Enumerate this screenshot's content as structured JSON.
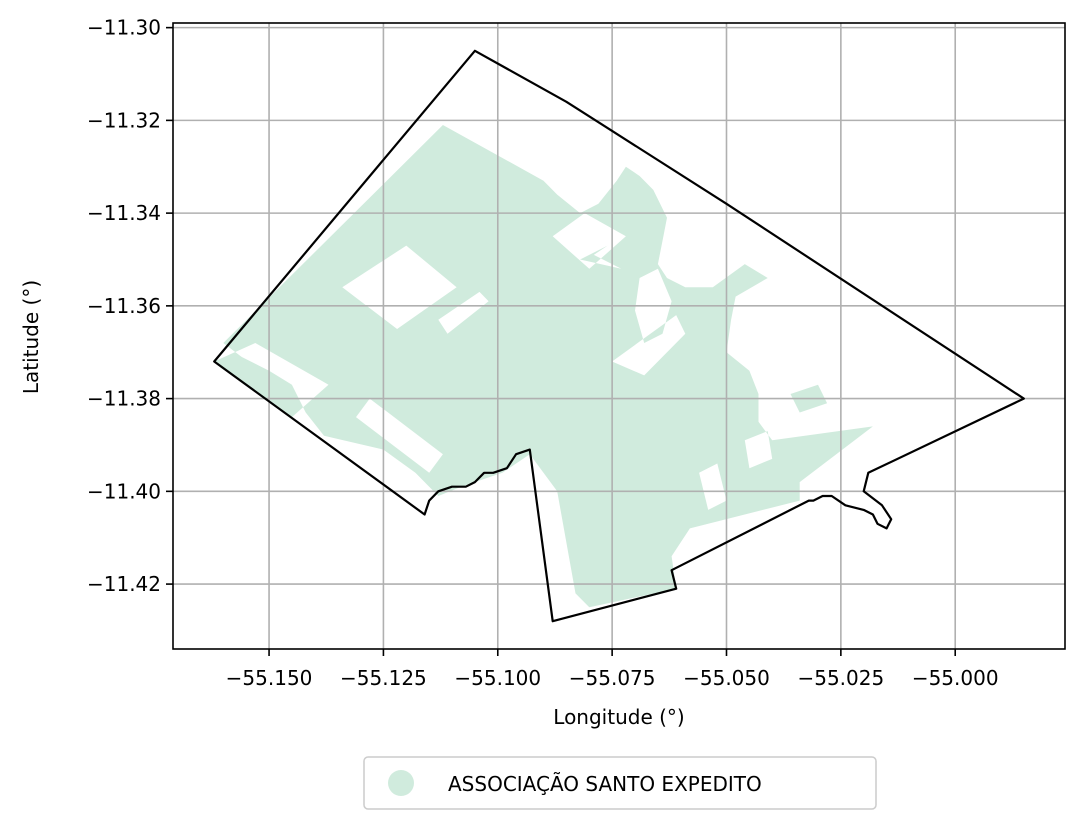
{
  "chart_data": {
    "type": "map",
    "title": "",
    "xlabel": "Longitude (°)",
    "ylabel": "Latitude (°)",
    "xlim": [
      -55.171,
      -54.976
    ],
    "ylim": [
      -11.434,
      -11.299
    ],
    "x_ticks": [
      -55.15,
      -55.125,
      -55.1,
      -55.075,
      -55.05,
      -55.025,
      -55.0
    ],
    "x_tick_labels": [
      "−55.150",
      "−55.125",
      "−55.100",
      "−55.075",
      "−55.050",
      "−55.025",
      "−55.000"
    ],
    "y_ticks": [
      -11.3,
      -11.32,
      -11.34,
      -11.36,
      -11.38,
      -11.4,
      -11.42
    ],
    "y_tick_labels": [
      "−11.30",
      "−11.32",
      "−11.34",
      "−11.36",
      "−11.38",
      "−11.40",
      "−11.42"
    ],
    "grid": true,
    "legend_position": "bottom-center",
    "series": [
      {
        "name": "ASSOCIAÇÃO SANTO EXPEDITO",
        "color": "#d0ebdd"
      }
    ],
    "boundary_color": "#000000",
    "boundary": [
      [
        -55.105,
        -11.305
      ],
      [
        -55.085,
        -11.316
      ],
      [
        -55.05,
        -11.338
      ],
      [
        -54.985,
        -11.38
      ],
      [
        -55.019,
        -11.396
      ],
      [
        -55.02,
        -11.4
      ],
      [
        -55.016,
        -11.403
      ],
      [
        -55.014,
        -11.406
      ],
      [
        -55.015,
        -11.408
      ],
      [
        -55.017,
        -11.407
      ],
      [
        -55.018,
        -11.405
      ],
      [
        -55.02,
        -11.404
      ],
      [
        -55.024,
        -11.403
      ],
      [
        -55.027,
        -11.401
      ],
      [
        -55.029,
        -11.401
      ],
      [
        -55.031,
        -11.402
      ],
      [
        -55.032,
        -11.402
      ],
      [
        -55.062,
        -11.417
      ],
      [
        -55.061,
        -11.421
      ],
      [
        -55.088,
        -11.428
      ],
      [
        -55.093,
        -11.391
      ],
      [
        -55.096,
        -11.392
      ],
      [
        -55.098,
        -11.395
      ],
      [
        -55.101,
        -11.396
      ],
      [
        -55.103,
        -11.396
      ],
      [
        -55.105,
        -11.398
      ],
      [
        -55.107,
        -11.399
      ],
      [
        -55.11,
        -11.399
      ],
      [
        -55.113,
        -11.4
      ],
      [
        -55.115,
        -11.402
      ],
      [
        -55.116,
        -11.405
      ],
      [
        -55.162,
        -11.372
      ]
    ],
    "area_polygon": [
      [
        -55.112,
        -11.321
      ],
      [
        -55.09,
        -11.333
      ],
      [
        -55.087,
        -11.336
      ],
      [
        -55.082,
        -11.34
      ],
      [
        -55.078,
        -11.338
      ],
      [
        -55.074,
        -11.333
      ],
      [
        -55.072,
        -11.33
      ],
      [
        -55.069,
        -11.332
      ],
      [
        -55.066,
        -11.335
      ],
      [
        -55.063,
        -11.341
      ],
      [
        -55.064,
        -11.346
      ],
      [
        -55.065,
        -11.351
      ],
      [
        -55.063,
        -11.354
      ],
      [
        -55.059,
        -11.356
      ],
      [
        -55.053,
        -11.356
      ],
      [
        -55.046,
        -11.351
      ],
      [
        -55.041,
        -11.354
      ],
      [
        -55.048,
        -11.358
      ],
      [
        -55.049,
        -11.363
      ],
      [
        -55.05,
        -11.37
      ],
      [
        -55.045,
        -11.374
      ],
      [
        -55.043,
        -11.379
      ],
      [
        -55.043,
        -11.385
      ],
      [
        -55.04,
        -11.389
      ],
      [
        -55.018,
        -11.386
      ],
      [
        -55.026,
        -11.392
      ],
      [
        -55.034,
        -11.398
      ],
      [
        -55.034,
        -11.402
      ],
      [
        -55.058,
        -11.408
      ],
      [
        -55.062,
        -11.414
      ],
      [
        -55.061,
        -11.421
      ],
      [
        -55.08,
        -11.425
      ],
      [
        -55.083,
        -11.422
      ],
      [
        -55.087,
        -11.4
      ],
      [
        -55.093,
        -11.392
      ],
      [
        -55.099,
        -11.396
      ],
      [
        -55.108,
        -11.399
      ],
      [
        -55.113,
        -11.401
      ],
      [
        -55.118,
        -11.396
      ],
      [
        -55.125,
        -11.391
      ],
      [
        -55.138,
        -11.388
      ],
      [
        -55.142,
        -11.383
      ],
      [
        -55.145,
        -11.377
      ],
      [
        -55.15,
        -11.374
      ],
      [
        -55.156,
        -11.371
      ],
      [
        -55.16,
        -11.368
      ]
    ],
    "holes": [
      [
        [
          -55.134,
          -11.356
        ],
        [
          -55.12,
          -11.347
        ],
        [
          -55.109,
          -11.356
        ],
        [
          -55.122,
          -11.365
        ]
      ],
      [
        [
          -55.162,
          -11.372
        ],
        [
          -55.153,
          -11.368
        ],
        [
          -55.137,
          -11.377
        ],
        [
          -55.145,
          -11.384
        ]
      ],
      [
        [
          -55.128,
          -11.38
        ],
        [
          -55.112,
          -11.392
        ],
        [
          -55.115,
          -11.396
        ],
        [
          -55.131,
          -11.384
        ]
      ],
      [
        [
          -55.113,
          -11.363
        ],
        [
          -55.104,
          -11.357
        ],
        [
          -55.102,
          -11.359
        ],
        [
          -55.111,
          -11.366
        ]
      ],
      [
        [
          -55.082,
          -11.35
        ],
        [
          -55.076,
          -11.347
        ],
        [
          -55.079,
          -11.349
        ],
        [
          -55.073,
          -11.352
        ]
      ],
      [
        [
          -55.088,
          -11.345
        ],
        [
          -55.081,
          -11.34
        ],
        [
          -55.072,
          -11.345
        ],
        [
          -55.08,
          -11.352
        ]
      ],
      [
        [
          -55.075,
          -11.372
        ],
        [
          -55.061,
          -11.362
        ],
        [
          -55.059,
          -11.366
        ],
        [
          -55.068,
          -11.375
        ]
      ],
      [
        [
          -55.069,
          -11.354
        ],
        [
          -55.065,
          -11.352
        ],
        [
          -55.062,
          -11.359
        ],
        [
          -55.064,
          -11.366
        ],
        [
          -55.068,
          -11.368
        ],
        [
          -55.07,
          -11.361
        ]
      ],
      [
        [
          -55.036,
          -11.379
        ],
        [
          -55.03,
          -11.377
        ],
        [
          -55.028,
          -11.381
        ],
        [
          -55.034,
          -11.383
        ]
      ],
      [
        [
          -55.046,
          -11.389
        ],
        [
          -55.041,
          -11.387
        ],
        [
          -55.04,
          -11.393
        ],
        [
          -55.045,
          -11.395
        ]
      ],
      [
        [
          -55.056,
          -11.396
        ],
        [
          -55.052,
          -11.394
        ],
        [
          -55.05,
          -11.402
        ],
        [
          -55.054,
          -11.404
        ]
      ]
    ]
  }
}
